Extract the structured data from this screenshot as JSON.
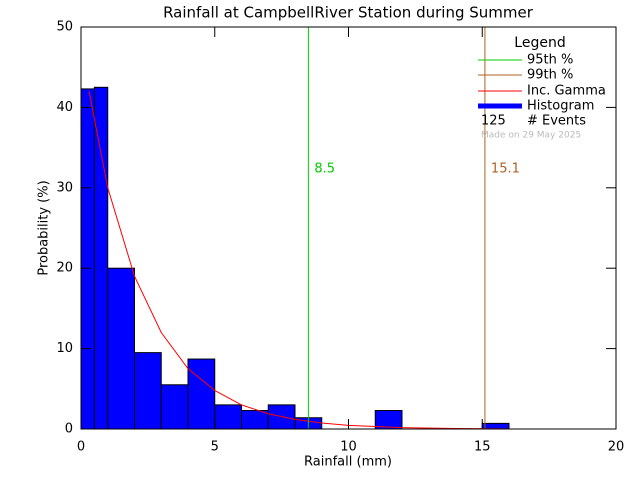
{
  "chart_data": {
    "type": "histogram",
    "title": "Rainfall at CampbellRiver Station during Summer",
    "x_label": "Rainfall (mm)",
    "y_label": "Probability (%)",
    "xlim": [
      0,
      20
    ],
    "xticks": [
      0,
      5,
      10,
      15,
      20
    ],
    "ylim": [
      0,
      50
    ],
    "yticks": [
      0,
      10,
      20,
      30,
      40,
      50
    ],
    "bins": [
      0,
      0.5,
      1,
      2,
      3,
      4,
      5,
      6,
      7,
      8,
      9,
      10,
      11,
      12,
      13,
      14,
      15,
      16
    ],
    "values": [
      42.3,
      42.5,
      20,
      9.5,
      5.5,
      8.7,
      3,
      2.3,
      3,
      1.4,
      0,
      0,
      2.3,
      0,
      0,
      0,
      0.7
    ],
    "color": "#0000ff",
    "series": [
      {
        "name": "Inc. Gamma",
        "color": "#ff0000",
        "x": [
          0.3,
          1,
          2,
          3,
          4,
          5,
          6,
          7,
          8,
          9,
          10,
          12,
          14,
          16
        ],
        "values": [
          42,
          30,
          19,
          12,
          7.5,
          4.8,
          3,
          1.9,
          1.2,
          0.75,
          0.45,
          0.17,
          0.06,
          0.02
        ]
      }
    ],
    "percentiles": [
      {
        "name": "95th %",
        "value": 8.5,
        "color": "#00cc00"
      },
      {
        "name": "99th %",
        "value": 15.1,
        "color": "#b06020"
      }
    ],
    "legend_title": "Legend",
    "histogram_label": "Histogram",
    "events": 125,
    "events_label": "# Events",
    "note": "Made on 29 May 2025"
  }
}
